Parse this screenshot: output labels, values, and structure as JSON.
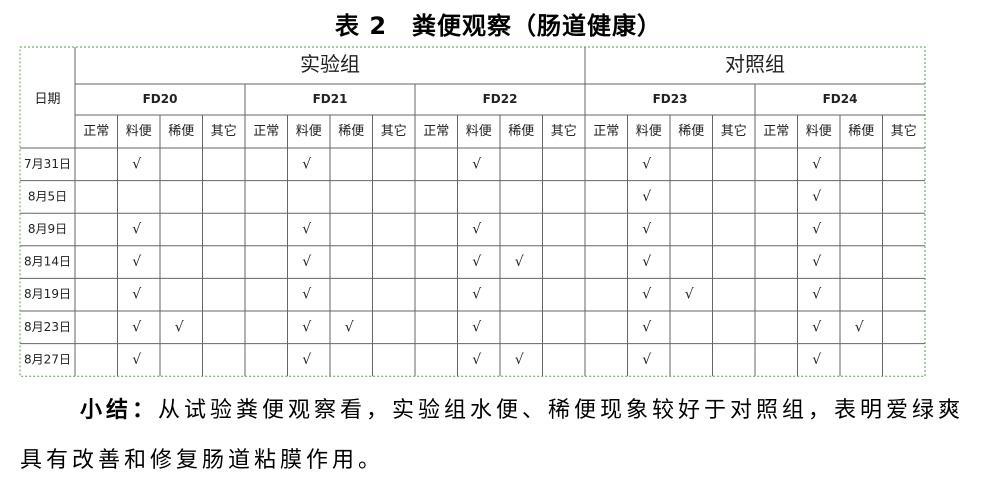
{
  "title": "表 2　粪便观察（肠道健康）",
  "table": {
    "date_header": "日期",
    "groups": [
      {
        "label": "实验组",
        "samples": [
          "FD20",
          "FD21",
          "FD22"
        ]
      },
      {
        "label": "对照组",
        "samples": [
          "FD23",
          "FD24"
        ]
      }
    ],
    "sub_columns": [
      "正常",
      "料便",
      "稀便",
      "其它"
    ],
    "rows": [
      {
        "date": "7月31日",
        "cells": [
          null,
          "√",
          null,
          null,
          null,
          "√",
          null,
          null,
          null,
          "√",
          null,
          null,
          null,
          "√",
          null,
          null,
          null,
          "√",
          null,
          null
        ]
      },
      {
        "date": "8月5日",
        "cells": [
          null,
          null,
          null,
          null,
          null,
          null,
          null,
          null,
          null,
          null,
          null,
          null,
          null,
          "√",
          null,
          null,
          null,
          "√",
          null,
          null
        ]
      },
      {
        "date": "8月9日",
        "cells": [
          null,
          "√",
          null,
          null,
          null,
          "√",
          null,
          null,
          null,
          "√",
          null,
          null,
          null,
          "√",
          null,
          null,
          null,
          "√",
          null,
          null
        ]
      },
      {
        "date": "8月14日",
        "cells": [
          null,
          "√",
          null,
          null,
          null,
          "√",
          null,
          null,
          null,
          "√",
          "√",
          null,
          null,
          "√",
          null,
          null,
          null,
          "√",
          null,
          null
        ]
      },
      {
        "date": "8月19日",
        "cells": [
          null,
          "√",
          null,
          null,
          null,
          "√",
          null,
          null,
          null,
          "√",
          null,
          null,
          null,
          "√",
          "√",
          null,
          null,
          "√",
          null,
          null
        ]
      },
      {
        "date": "8月23日",
        "cells": [
          null,
          "√",
          "√",
          null,
          null,
          "√",
          "√",
          null,
          null,
          "√",
          null,
          null,
          null,
          "√",
          null,
          null,
          null,
          "√",
          "√",
          null
        ]
      },
      {
        "date": "8月27日",
        "cells": [
          null,
          "√",
          null,
          null,
          null,
          "√",
          null,
          null,
          null,
          "√",
          "√",
          null,
          null,
          "√",
          null,
          null,
          null,
          "√",
          null,
          null
        ]
      }
    ]
  },
  "summary": {
    "label": "小结：",
    "text": "从试验粪便观察看，实验组水便、稀便现象较好于对照组，表明爱绿爽具有改善和修复肠道粘膜作用。"
  }
}
